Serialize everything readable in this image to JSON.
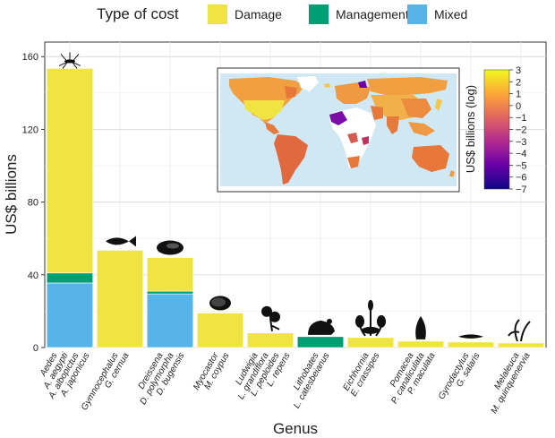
{
  "chart_data": {
    "type": "bar",
    "stacked": true,
    "xlabel": "Genus",
    "ylabel": "US$ billions",
    "ylim": [
      0,
      168
    ],
    "yticks": [
      0,
      40,
      80,
      120,
      160
    ],
    "grid": true,
    "legend": {
      "title": "Type of cost",
      "position": "top",
      "items": [
        {
          "label": "Damage",
          "color": "#f0e442"
        },
        {
          "label": "Management",
          "color": "#009e73"
        },
        {
          "label": "Mixed",
          "color": "#56b4e9"
        }
      ]
    },
    "categories": [
      {
        "genus": "Aedes",
        "species": [
          "A. aegypti",
          "A. albopictus",
          "A. japonicus"
        ],
        "icon": "mosquito-icon"
      },
      {
        "genus": "Gymnocephalus",
        "species": [
          "G. cernua"
        ],
        "icon": "fish-icon"
      },
      {
        "genus": "Dreissena",
        "species": [
          "D. polymorpha",
          "D. bugensis"
        ],
        "icon": "mussel-icon"
      },
      {
        "genus": "Myocastor",
        "species": [
          "M. coypus"
        ],
        "icon": "rodent-icon"
      },
      {
        "genus": "Ludwigia",
        "species": [
          "L. grandiflora",
          "L. peploides",
          "L. repens"
        ],
        "icon": "flower-icon"
      },
      {
        "genus": "Lithobates",
        "species": [
          "L. catesbeianus"
        ],
        "icon": "frog-icon"
      },
      {
        "genus": "Eichhornia",
        "species": [
          "E. crassipes"
        ],
        "icon": "water-hyacinth-icon"
      },
      {
        "genus": "Pomacea",
        "species": [
          "P. canaliculata",
          "P. maculata"
        ],
        "icon": "snail-icon"
      },
      {
        "genus": "Gyrodactylus",
        "species": [
          "G. salaris"
        ],
        "icon": "worm-icon"
      },
      {
        "genus": "Melaleuca",
        "species": [
          "M. quinquenervia"
        ],
        "icon": "tree-icon"
      }
    ],
    "series": [
      {
        "name": "Mixed",
        "color": "#56b4e9",
        "values": [
          35.5,
          0,
          29.5,
          0,
          0,
          0,
          0,
          0,
          0,
          0
        ]
      },
      {
        "name": "Management",
        "color": "#009e73",
        "values": [
          5.5,
          0,
          1.5,
          0,
          0,
          6.0,
          0,
          0,
          0,
          0
        ]
      },
      {
        "name": "Damage",
        "color": "#f0e442",
        "values": [
          112.5,
          53.5,
          18.5,
          19.0,
          8.0,
          0,
          5.5,
          3.5,
          3.0,
          2.5
        ]
      }
    ],
    "inset_map": {
      "type": "choropleth",
      "colorbar_label": "US$ billions (log)",
      "colorbar_ticks": [
        "3",
        "2",
        "1",
        "0",
        "−1",
        "−2",
        "−3",
        "−4",
        "−5",
        "−6",
        "−7"
      ],
      "colorbar_range": [
        -7,
        3
      ],
      "colors": [
        "#0d0887",
        "#6a00a8",
        "#b12a90",
        "#e16462",
        "#fca636",
        "#f0f921"
      ]
    }
  }
}
